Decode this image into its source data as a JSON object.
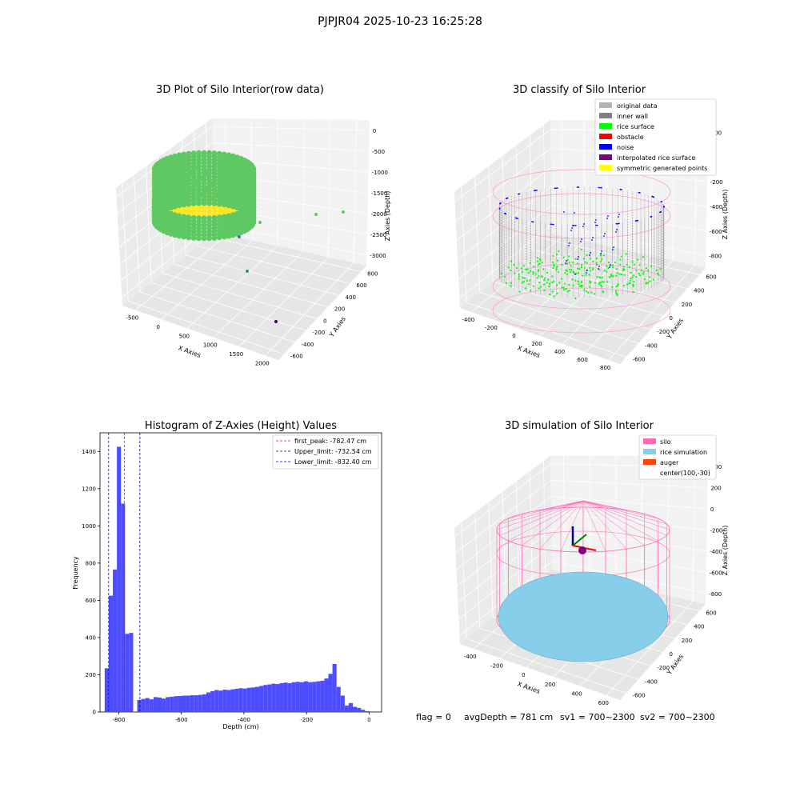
{
  "suptitle": "PJPJR04 2025-10-23 16:25:28",
  "footer": {
    "flag": "flag = 0",
    "avg_depth": "avgDepth = 781 cm",
    "sv1": "sv1 = 700~2300",
    "sv2": "sv2 = 700~2300"
  },
  "chart_data": [
    {
      "type": "scatter",
      "title": "3D Plot of Silo Interior(row data)",
      "xlabel": "X Axies",
      "ylabel": "Y Axies",
      "zlabel": "Z Axies (Depth)",
      "x_ticks": [
        "-500",
        "0",
        "500",
        "1000",
        "1500",
        "2000"
      ],
      "y_ticks": [
        "-600",
        "-400",
        "-200",
        "0",
        "200",
        "400",
        "600",
        "800"
      ],
      "z_ticks": [
        "0",
        "-500",
        "-1000",
        "-1500",
        "-2000",
        "-2500",
        "-3000"
      ],
      "colors": {
        "low": "#440154",
        "mid": "#21918c",
        "green": "#5ec962",
        "high": "#fde725"
      }
    },
    {
      "type": "scatter",
      "title": "3D classify of Silo Interior",
      "xlabel": "X Axies",
      "ylabel": "Y Axies",
      "zlabel": "Z Axies (Depth)",
      "x_ticks": [
        "-400",
        "-200",
        "0",
        "200",
        "400",
        "600",
        "800"
      ],
      "y_ticks": [
        "-600",
        "-400",
        "-200",
        "0",
        "200",
        "400",
        "600"
      ],
      "z_ticks": [
        "200",
        "0",
        "-200",
        "-400",
        "-600",
        "-800"
      ],
      "legend": [
        {
          "label": "original data",
          "color": "#b3b3b3"
        },
        {
          "label": "inner wall",
          "color": "#808080"
        },
        {
          "label": "rice surface",
          "color": "#00ff00"
        },
        {
          "label": "obstacle",
          "color": "#ff0000"
        },
        {
          "label": "noise",
          "color": "#0000ff"
        },
        {
          "label": "interpolated rice surface",
          "color": "#800080"
        },
        {
          "label": "symmetric generated points",
          "color": "#ffff00"
        }
      ],
      "legend_position": "top-right"
    },
    {
      "type": "bar",
      "title": "Histogram of Z-Axies (Height) Values",
      "xlabel": "Depth (cm)",
      "ylabel": "Frequency",
      "xlim": [
        -860,
        40
      ],
      "ylim": [
        0,
        1500
      ],
      "x_ticks": [
        -800,
        -600,
        -400,
        -200,
        0
      ],
      "y_ticks": [
        0,
        200,
        400,
        600,
        800,
        1000,
        1200,
        1400
      ],
      "bar_color": "#4d4dff",
      "bins": [
        {
          "x0": -845,
          "x1": -832,
          "count": 235
        },
        {
          "x0": -832,
          "x1": -819,
          "count": 625
        },
        {
          "x0": -819,
          "x1": -806,
          "count": 765
        },
        {
          "x0": -806,
          "x1": -793,
          "count": 1425
        },
        {
          "x0": -793,
          "x1": -780,
          "count": 1120
        },
        {
          "x0": -780,
          "x1": -767,
          "count": 420
        },
        {
          "x0": -767,
          "x1": -754,
          "count": 425
        },
        {
          "x0": -754,
          "x1": -741,
          "count": 0
        },
        {
          "x0": -741,
          "x1": -728,
          "count": 65
        },
        {
          "x0": -728,
          "x1": -715,
          "count": 70
        },
        {
          "x0": -715,
          "x1": -702,
          "count": 75
        },
        {
          "x0": -702,
          "x1": -689,
          "count": 68
        },
        {
          "x0": -689,
          "x1": -676,
          "count": 80
        },
        {
          "x0": -676,
          "x1": -663,
          "count": 78
        },
        {
          "x0": -663,
          "x1": -650,
          "count": 72
        },
        {
          "x0": -650,
          "x1": -637,
          "count": 80
        },
        {
          "x0": -637,
          "x1": -624,
          "count": 82
        },
        {
          "x0": -624,
          "x1": -611,
          "count": 85
        },
        {
          "x0": -611,
          "x1": -598,
          "count": 86
        },
        {
          "x0": -598,
          "x1": -585,
          "count": 88
        },
        {
          "x0": -585,
          "x1": -572,
          "count": 88
        },
        {
          "x0": -572,
          "x1": -559,
          "count": 90
        },
        {
          "x0": -559,
          "x1": -546,
          "count": 90
        },
        {
          "x0": -546,
          "x1": -533,
          "count": 92
        },
        {
          "x0": -533,
          "x1": -520,
          "count": 95
        },
        {
          "x0": -520,
          "x1": -507,
          "count": 105
        },
        {
          "x0": -507,
          "x1": -494,
          "count": 112
        },
        {
          "x0": -494,
          "x1": -481,
          "count": 118
        },
        {
          "x0": -481,
          "x1": -468,
          "count": 115
        },
        {
          "x0": -468,
          "x1": -455,
          "count": 120
        },
        {
          "x0": -455,
          "x1": -442,
          "count": 118
        },
        {
          "x0": -442,
          "x1": -429,
          "count": 122
        },
        {
          "x0": -429,
          "x1": -416,
          "count": 125
        },
        {
          "x0": -416,
          "x1": -403,
          "count": 128
        },
        {
          "x0": -403,
          "x1": -390,
          "count": 126
        },
        {
          "x0": -390,
          "x1": -377,
          "count": 130
        },
        {
          "x0": -377,
          "x1": -364,
          "count": 132
        },
        {
          "x0": -364,
          "x1": -351,
          "count": 135
        },
        {
          "x0": -351,
          "x1": -338,
          "count": 140
        },
        {
          "x0": -338,
          "x1": -325,
          "count": 145
        },
        {
          "x0": -325,
          "x1": -312,
          "count": 148
        },
        {
          "x0": -312,
          "x1": -299,
          "count": 152
        },
        {
          "x0": -299,
          "x1": -286,
          "count": 150
        },
        {
          "x0": -286,
          "x1": -273,
          "count": 155
        },
        {
          "x0": -273,
          "x1": -260,
          "count": 158
        },
        {
          "x0": -260,
          "x1": -247,
          "count": 155
        },
        {
          "x0": -247,
          "x1": -234,
          "count": 160
        },
        {
          "x0": -234,
          "x1": -221,
          "count": 162
        },
        {
          "x0": -221,
          "x1": -208,
          "count": 160
        },
        {
          "x0": -208,
          "x1": -195,
          "count": 165
        },
        {
          "x0": -195,
          "x1": -182,
          "count": 160
        },
        {
          "x0": -182,
          "x1": -169,
          "count": 162
        },
        {
          "x0": -169,
          "x1": -156,
          "count": 165
        },
        {
          "x0": -156,
          "x1": -143,
          "count": 168
        },
        {
          "x0": -143,
          "x1": -130,
          "count": 180
        },
        {
          "x0": -130,
          "x1": -117,
          "count": 205
        },
        {
          "x0": -117,
          "x1": -104,
          "count": 258
        },
        {
          "x0": -104,
          "x1": -91,
          "count": 135
        },
        {
          "x0": -91,
          "x1": -78,
          "count": 88
        },
        {
          "x0": -78,
          "x1": -65,
          "count": 35
        },
        {
          "x0": -65,
          "x1": -52,
          "count": 48
        },
        {
          "x0": -52,
          "x1": -39,
          "count": 28
        },
        {
          "x0": -39,
          "x1": -26,
          "count": 22
        },
        {
          "x0": -26,
          "x1": -13,
          "count": 12
        },
        {
          "x0": -13,
          "x1": 0,
          "count": 5
        }
      ],
      "vlines": [
        {
          "label": "first_peak: -782.47 cm",
          "x": -782.47,
          "color": "#ff0000"
        },
        {
          "label": "Upper_limit: -732.54 cm",
          "x": -732.54,
          "color": "#00008b"
        },
        {
          "label": "Lower_limit: -832.40 cm",
          "x": -832.4,
          "color": "#0000ff"
        }
      ],
      "legend_position": "top-right"
    },
    {
      "type": "scatter",
      "title": "3D simulation of Silo Interior",
      "xlabel": "X Axies",
      "ylabel": "Y Axies",
      "zlabel": "Z Axies (Depth)",
      "x_ticks": [
        "-400",
        "-200",
        "0",
        "200",
        "400",
        "600"
      ],
      "y_ticks": [
        "-600",
        "-400",
        "-200",
        "0",
        "200",
        "400",
        "600"
      ],
      "z_ticks": [
        "400",
        "200",
        "0",
        "-200",
        "-400",
        "-600",
        "-800"
      ],
      "legend": [
        {
          "label": "silo",
          "color": "#ff69b4"
        },
        {
          "label": "rice simulation",
          "color": "#87ceeb"
        },
        {
          "label": "auger",
          "color": "#ff4500"
        },
        {
          "label": "center(100,-30)",
          "color": ""
        }
      ],
      "legend_position": "top-right"
    }
  ]
}
